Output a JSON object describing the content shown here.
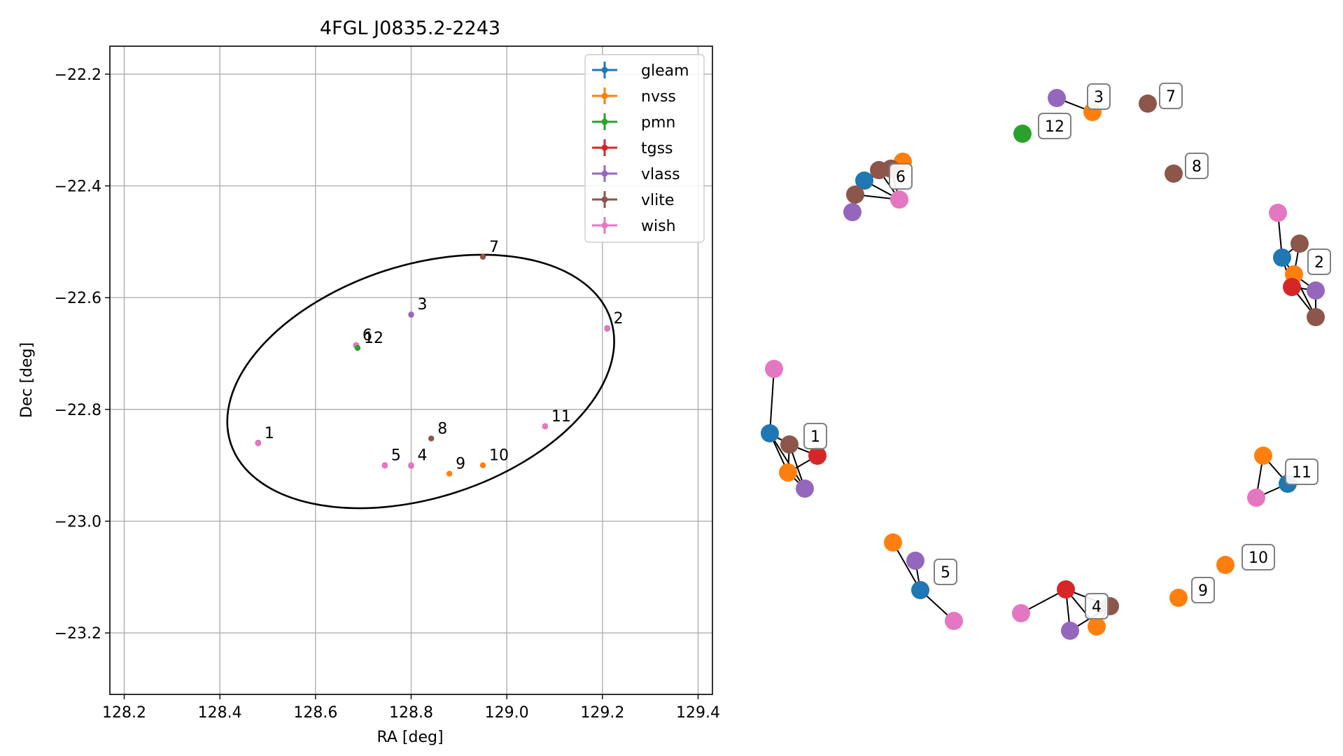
{
  "colors": {
    "gleam": "#1f77b4",
    "nvss": "#ff7f0e",
    "pmn": "#2ca02c",
    "tgss": "#d62728",
    "vlass": "#9467bd",
    "vlite": "#8c564b",
    "wish": "#e377c2"
  },
  "chart_data": [
    {
      "type": "scatter",
      "title": "4FGL J0835.2-2243",
      "xlabel": "RA [deg]",
      "ylabel": "Dec [deg]",
      "xlim": [
        128.17,
        129.43
      ],
      "ylim": [
        -23.31,
        -22.15
      ],
      "xticks": [
        128.2,
        128.4,
        128.6,
        128.8,
        129.0,
        129.2,
        129.4
      ],
      "yticks": [
        -22.2,
        -22.4,
        -22.6,
        -22.8,
        -23.0,
        -23.2
      ],
      "xtick_labels": [
        "128.2",
        "128.4",
        "128.6",
        "128.8",
        "129.0",
        "129.2",
        "129.4"
      ],
      "ytick_labels": [
        "−22.2",
        "−22.4",
        "−22.6",
        "−22.8",
        "−23.0",
        "−23.2"
      ],
      "grid": true,
      "legend_position": "top-right",
      "legend": [
        "gleam",
        "nvss",
        "pmn",
        "tgss",
        "vlass",
        "vlite",
        "wish"
      ],
      "ellipse": {
        "center": [
          128.82,
          -22.75
        ],
        "semi_major_deg": 0.42,
        "semi_minor_deg": 0.19,
        "angle_deg": 18
      },
      "points": [
        {
          "label": "1",
          "ra": 128.48,
          "dec": -22.86,
          "surveys": [
            "gleam",
            "nvss",
            "tgss",
            "vlass",
            "vlite",
            "wish"
          ]
        },
        {
          "label": "2",
          "ra": 129.21,
          "dec": -22.655,
          "surveys": [
            "gleam",
            "nvss",
            "tgss",
            "vlass",
            "vlite",
            "wish"
          ]
        },
        {
          "label": "3",
          "ra": 128.8,
          "dec": -22.63,
          "surveys": [
            "nvss",
            "vlass"
          ]
        },
        {
          "label": "4",
          "ra": 128.8,
          "dec": -22.9,
          "surveys": [
            "nvss",
            "tgss",
            "vlass",
            "vlite",
            "wish"
          ]
        },
        {
          "label": "5",
          "ra": 128.745,
          "dec": -22.9,
          "surveys": [
            "gleam",
            "nvss",
            "vlass",
            "wish"
          ]
        },
        {
          "label": "6",
          "ra": 128.685,
          "dec": -22.685,
          "surveys": [
            "gleam",
            "nvss",
            "vlass",
            "vlite",
            "wish"
          ]
        },
        {
          "label": "7",
          "ra": 128.95,
          "dec": -22.527,
          "surveys": [
            "vlite"
          ]
        },
        {
          "label": "8",
          "ra": 128.842,
          "dec": -22.852,
          "surveys": [
            "vlite"
          ]
        },
        {
          "label": "9",
          "ra": 128.88,
          "dec": -22.915,
          "surveys": [
            "nvss"
          ]
        },
        {
          "label": "10",
          "ra": 128.95,
          "dec": -22.9,
          "surveys": [
            "nvss"
          ]
        },
        {
          "label": "11",
          "ra": 129.08,
          "dec": -22.83,
          "surveys": [
            "gleam",
            "nvss",
            "wish"
          ]
        },
        {
          "label": "12",
          "ra": 128.688,
          "dec": -22.69,
          "surveys": [
            "pmn"
          ]
        }
      ],
      "point_label_offsets_hidden": true
    },
    {
      "type": "network",
      "groups": [
        {
          "label": "1",
          "nodes": [
            "wish",
            "gleam",
            "vlite",
            "tgss",
            "nvss",
            "vlass"
          ]
        },
        {
          "label": "2",
          "nodes": [
            "wish",
            "vlite",
            "gleam",
            "nvss",
            "tgss",
            "vlass",
            "vlite"
          ]
        },
        {
          "label": "3",
          "nodes": [
            "vlass",
            "nvss"
          ]
        },
        {
          "label": "4",
          "nodes": [
            "tgss",
            "vlite",
            "vlass",
            "nvss",
            "wish"
          ]
        },
        {
          "label": "5",
          "nodes": [
            "nvss",
            "vlass",
            "gleam",
            "wish"
          ]
        },
        {
          "label": "6",
          "nodes": [
            "nvss",
            "vlite",
            "vlite",
            "gleam",
            "vlite",
            "wish",
            "vlass"
          ]
        },
        {
          "label": "7",
          "nodes": [
            "vlite"
          ]
        },
        {
          "label": "8",
          "nodes": [
            "vlite"
          ]
        },
        {
          "label": "9",
          "nodes": [
            "nvss"
          ]
        },
        {
          "label": "10",
          "nodes": [
            "nvss"
          ]
        },
        {
          "label": "11",
          "nodes": [
            "nvss",
            "gleam",
            "wish"
          ]
        },
        {
          "label": "12",
          "nodes": [
            "pmn"
          ]
        }
      ]
    }
  ]
}
